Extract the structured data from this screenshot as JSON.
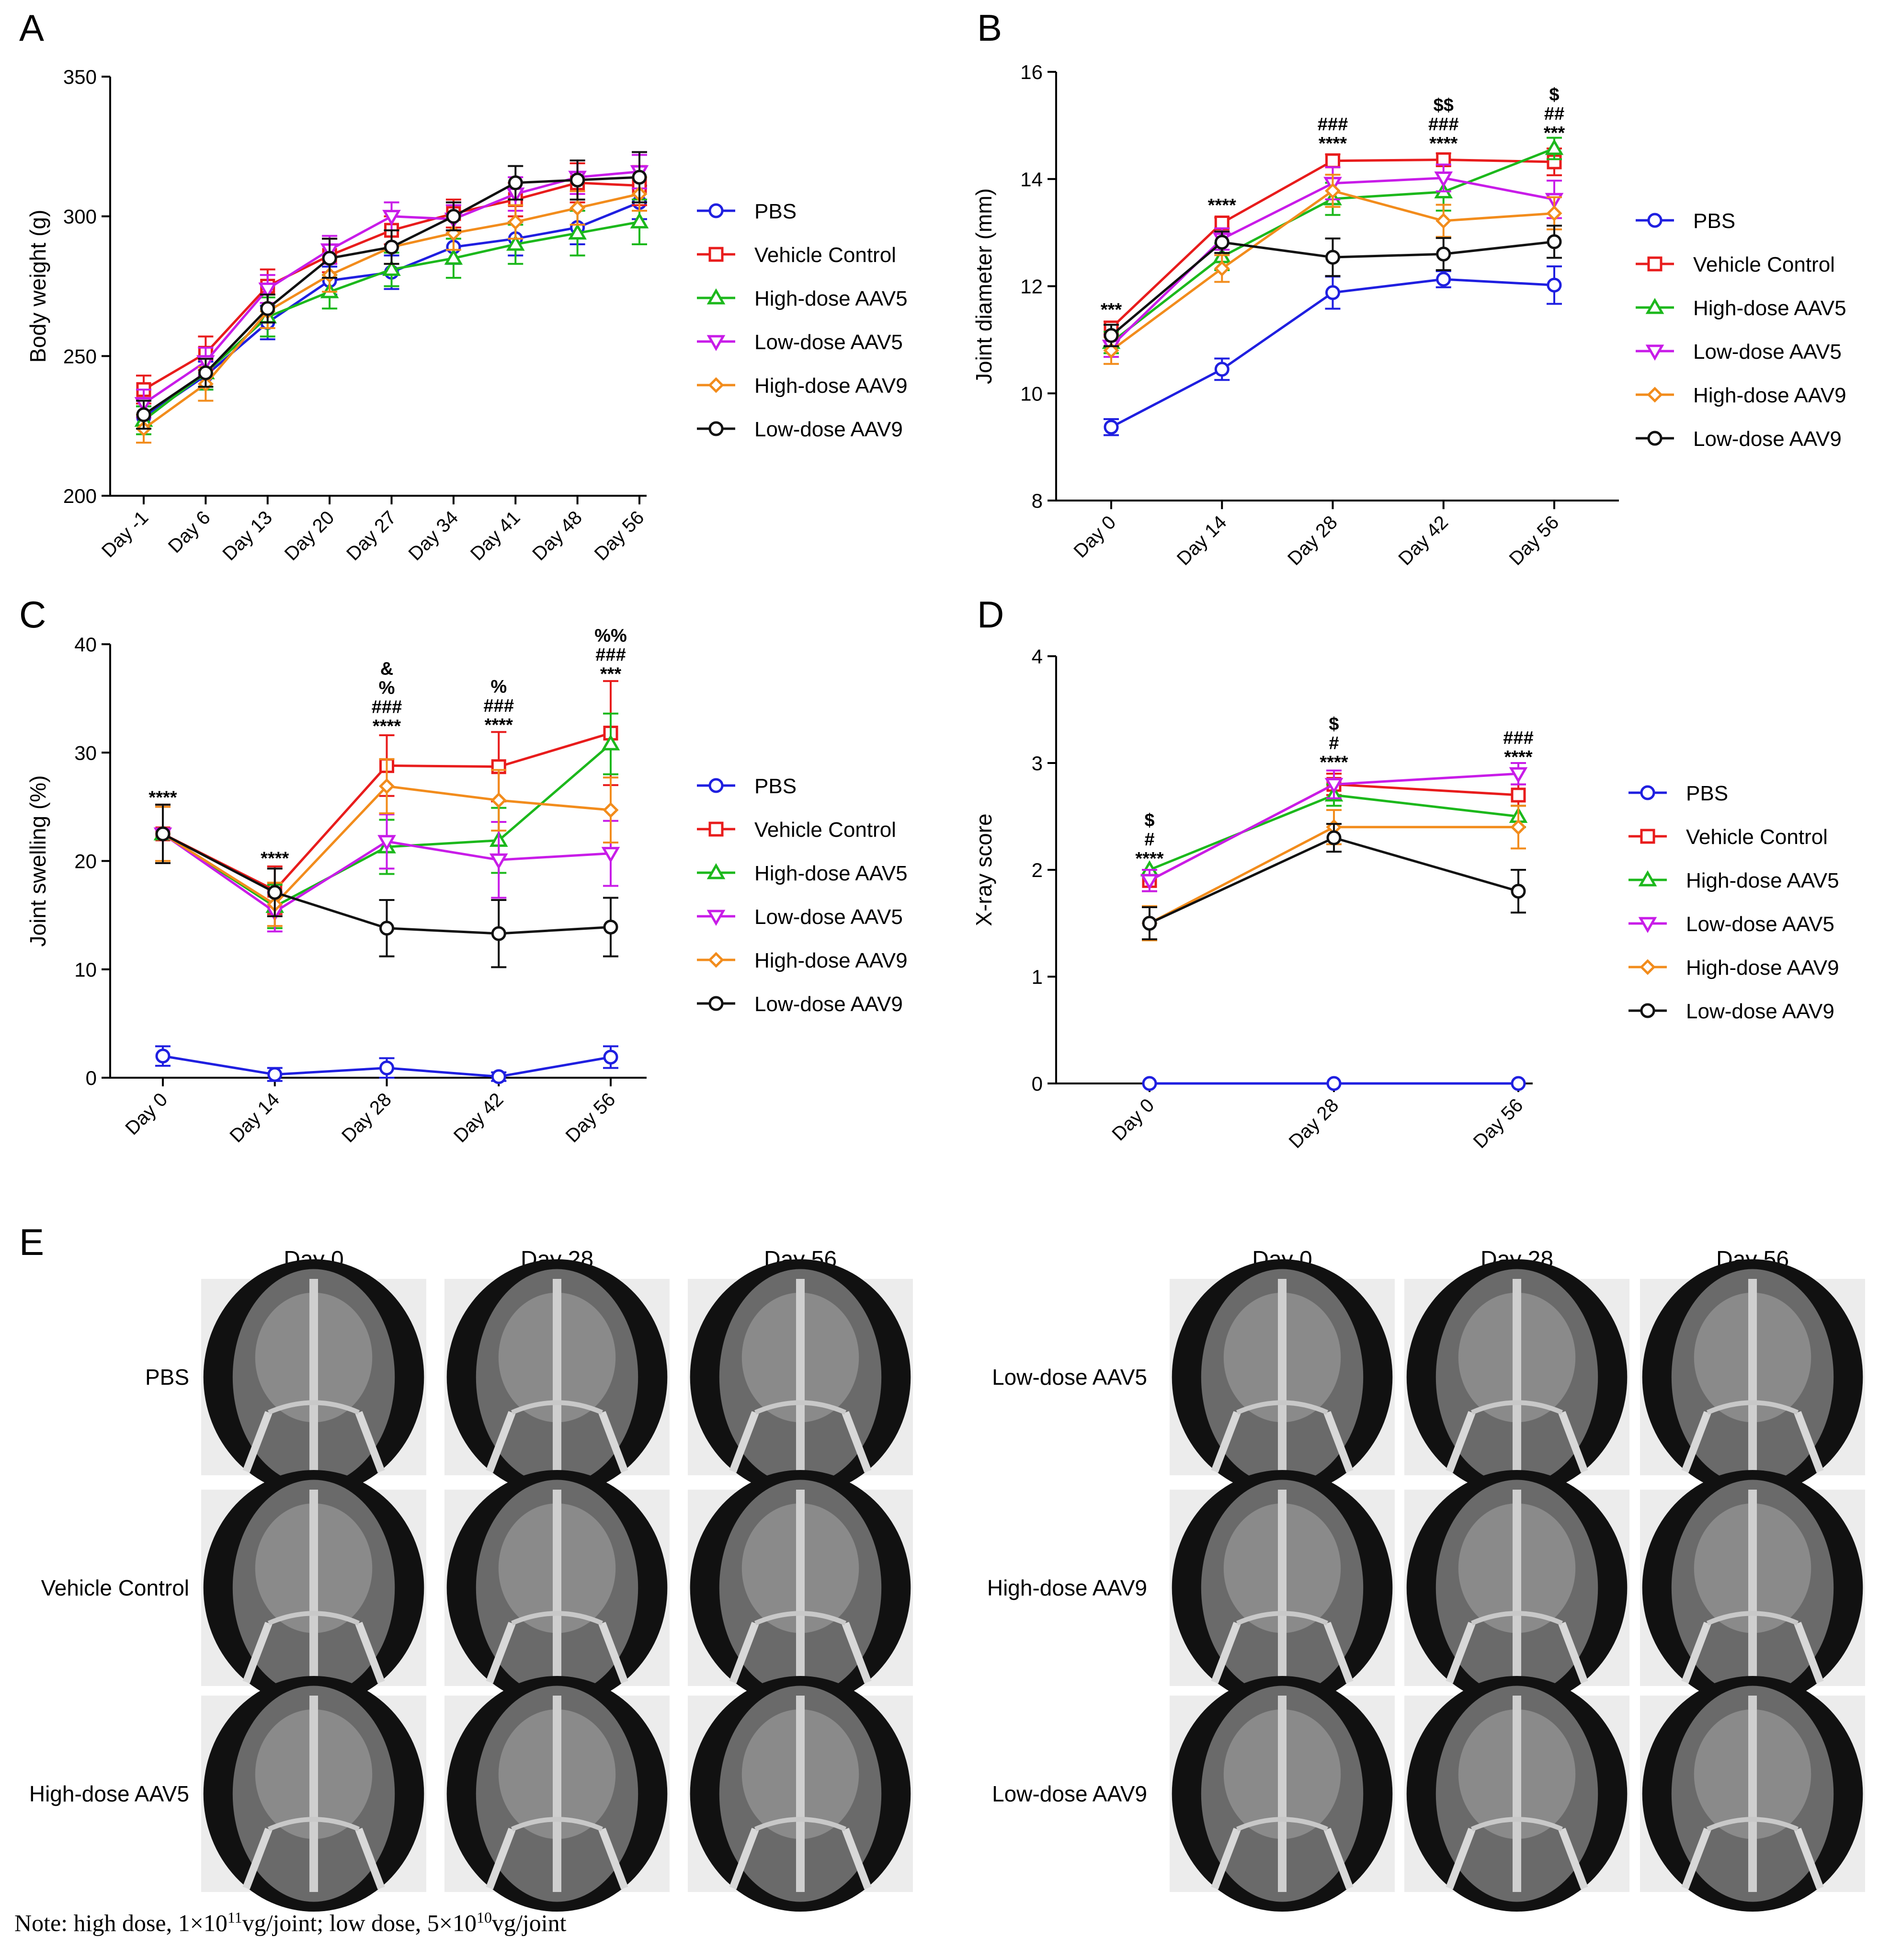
{
  "chart_data": [
    {
      "panel": "A",
      "type": "line",
      "ylabel": "Body weight (g)",
      "ylim": [
        200,
        350
      ],
      "yticks": [
        200,
        250,
        300,
        350
      ],
      "categories": [
        "Day -1",
        "Day 6",
        "Day 13",
        "Day 20",
        "Day 27",
        "Day 34",
        "Day 41",
        "Day 48",
        "Day 56"
      ],
      "series": [
        {
          "name": "PBS",
          "values": [
            228,
            243,
            262,
            277,
            280,
            289,
            292,
            296,
            305
          ],
          "err": [
            4,
            5,
            6,
            5,
            6,
            6,
            6,
            6,
            6
          ]
        },
        {
          "name": "Vehicle Control",
          "values": [
            238,
            251,
            275,
            286,
            295,
            301,
            306,
            312,
            311
          ],
          "err": [
            5,
            6,
            6,
            6,
            5,
            5,
            6,
            7,
            7
          ]
        },
        {
          "name": "High-dose AAV5",
          "values": [
            227,
            244,
            264,
            273,
            281,
            285,
            290,
            294,
            298
          ],
          "err": [
            5,
            6,
            7,
            6,
            6,
            7,
            7,
            8,
            8
          ]
        },
        {
          "name": "Low-dose AAV5",
          "values": [
            233,
            248,
            274,
            288,
            300,
            299,
            308,
            314,
            316
          ],
          "err": [
            5,
            5,
            5,
            5,
            5,
            5,
            6,
            6,
            6
          ]
        },
        {
          "name": "High-dose AAV9",
          "values": [
            224,
            240,
            266,
            279,
            289,
            294,
            298,
            303,
            308
          ],
          "err": [
            5,
            6,
            6,
            6,
            6,
            6,
            6,
            6,
            6
          ]
        },
        {
          "name": "Low-dose AAV9",
          "values": [
            229,
            244,
            267,
            285,
            289,
            300,
            312,
            313,
            314
          ],
          "err": [
            5,
            5,
            5,
            7,
            6,
            5,
            6,
            7,
            9
          ]
        }
      ],
      "annotations": []
    },
    {
      "panel": "B",
      "type": "line",
      "ylabel": "Joint diameter (mm)",
      "ylim": [
        8,
        16
      ],
      "yticks": [
        8,
        10,
        12,
        14,
        16
      ],
      "categories": [
        "Day 0",
        "Day 14",
        "Day 28",
        "Day 42",
        "Day 56"
      ],
      "series": [
        {
          "name": "PBS",
          "values": [
            9.37,
            10.45,
            11.88,
            12.13,
            12.02
          ],
          "err": [
            0.15,
            0.2,
            0.3,
            0.15,
            0.35
          ]
        },
        {
          "name": "Vehicle Control",
          "values": [
            11.22,
            13.18,
            14.34,
            14.36,
            14.32
          ],
          "err": [
            0.12,
            0.1,
            0.12,
            0.12,
            0.25
          ]
        },
        {
          "name": "High-dose AAV5",
          "values": [
            10.95,
            12.55,
            13.63,
            13.76,
            14.57
          ],
          "err": [
            0.2,
            0.25,
            0.3,
            0.35,
            0.2
          ]
        },
        {
          "name": "Low-dose AAV5",
          "values": [
            10.88,
            12.88,
            13.92,
            14.02,
            13.62
          ],
          "err": [
            0.2,
            0.2,
            0.3,
            0.25,
            0.35
          ]
        },
        {
          "name": "High-dose AAV9",
          "values": [
            10.8,
            12.33,
            13.78,
            13.22,
            13.36
          ],
          "err": [
            0.25,
            0.25,
            0.3,
            0.3,
            0.3
          ]
        },
        {
          "name": "Low-dose AAV9",
          "values": [
            11.08,
            12.82,
            12.54,
            12.6,
            12.83
          ],
          "err": [
            0.2,
            0.2,
            0.35,
            0.3,
            0.3
          ]
        }
      ],
      "annotations": [
        {
          "x": 0,
          "y": 11.45,
          "lines": [
            "***"
          ]
        },
        {
          "x": 1,
          "y": 13.4,
          "lines": [
            "****"
          ]
        },
        {
          "x": 2,
          "y": 14.55,
          "lines": [
            "###",
            "****"
          ]
        },
        {
          "x": 3,
          "y": 14.55,
          "lines": [
            "$$",
            "###",
            "****"
          ]
        },
        {
          "x": 4,
          "y": 14.75,
          "lines": [
            "$",
            "##",
            "***"
          ]
        }
      ]
    },
    {
      "panel": "C",
      "type": "line",
      "ylabel": "Joint swelling (%)",
      "ylim": [
        0,
        40
      ],
      "yticks": [
        0,
        10,
        20,
        30,
        40
      ],
      "categories": [
        "Day 0",
        "Day 14",
        "Day 28",
        "Day 42",
        "Day 56"
      ],
      "series": [
        {
          "name": "PBS",
          "values": [
            2.0,
            0.3,
            0.9,
            0.1,
            1.9
          ],
          "err": [
            0.9,
            0.6,
            0.9,
            0.4,
            1.0
          ]
        },
        {
          "name": "Vehicle Control",
          "values": [
            22.5,
            17.3,
            28.8,
            28.7,
            31.8
          ],
          "err": [
            2.7,
            2.2,
            2.8,
            3.2,
            4.8
          ]
        },
        {
          "name": "High-dose AAV5",
          "values": [
            22.5,
            15.8,
            21.3,
            21.9,
            30.8
          ],
          "err": [
            2.5,
            2.0,
            2.5,
            3.0,
            2.8
          ]
        },
        {
          "name": "Low-dose AAV5",
          "values": [
            22.5,
            15.3,
            21.8,
            20.1,
            20.7
          ],
          "err": [
            2.5,
            1.8,
            2.5,
            3.5,
            3.0
          ]
        },
        {
          "name": "High-dose AAV9",
          "values": [
            22.5,
            16.0,
            26.9,
            25.6,
            24.7
          ],
          "err": [
            2.5,
            2.0,
            2.5,
            2.8,
            3.0
          ]
        },
        {
          "name": "Low-dose AAV9",
          "values": [
            22.5,
            17.1,
            13.8,
            13.3,
            13.9
          ],
          "err": [
            2.7,
            2.2,
            2.6,
            3.1,
            2.7
          ]
        }
      ],
      "annotations": [
        {
          "x": 0,
          "y": 25.3,
          "lines": [
            "****"
          ]
        },
        {
          "x": 1,
          "y": 19.7,
          "lines": [
            "****"
          ]
        },
        {
          "x": 2,
          "y": 31.9,
          "lines": [
            "&",
            "%",
            "###",
            "****"
          ]
        },
        {
          "x": 3,
          "y": 32.0,
          "lines": [
            "%",
            "###",
            "****"
          ]
        },
        {
          "x": 4,
          "y": 36.7,
          "lines": [
            "%%",
            "###",
            "***"
          ]
        }
      ]
    },
    {
      "panel": "D",
      "type": "line",
      "ylabel": "X-ray score",
      "ylim": [
        0,
        4
      ],
      "yticks": [
        0,
        1,
        2,
        3,
        4
      ],
      "categories": [
        "Day 0",
        "Day 28",
        "Day 56"
      ],
      "series": [
        {
          "name": "PBS",
          "values": [
            0,
            0,
            0
          ],
          "err": [
            0,
            0,
            0
          ]
        },
        {
          "name": "Vehicle Control",
          "values": [
            1.9,
            2.8,
            2.7
          ],
          "err": [
            0.1,
            0.1,
            0.1
          ]
        },
        {
          "name": "High-dose AAV5",
          "values": [
            2.0,
            2.7,
            2.5
          ],
          "err": [
            0.0,
            0.1,
            0.1
          ]
        },
        {
          "name": "Low-dose AAV5",
          "values": [
            1.9,
            2.8,
            2.9
          ],
          "err": [
            0.1,
            0.13,
            0.1
          ]
        },
        {
          "name": "High-dose AAV9",
          "values": [
            1.5,
            2.4,
            2.4
          ],
          "err": [
            0.16,
            0.16,
            0.2
          ]
        },
        {
          "name": "Low-dose AAV9",
          "values": [
            1.5,
            2.3,
            1.8
          ],
          "err": [
            0.15,
            0.13,
            0.2
          ]
        }
      ],
      "annotations": [
        {
          "x": 0,
          "y": 2.05,
          "lines": [
            "$",
            "#",
            "****"
          ]
        },
        {
          "x": 1,
          "y": 2.95,
          "lines": [
            "$",
            "#",
            "****"
          ]
        },
        {
          "x": 2,
          "y": 3.0,
          "lines": [
            "###",
            "****"
          ]
        }
      ]
    }
  ],
  "series_colors": {
    "PBS": "#1f1fe0",
    "Vehicle Control": "#e81c1c",
    "High-dose AAV5": "#1cb81c",
    "Low-dose AAV5": "#c81ce8",
    "High-dose AAV9": "#f28c1c",
    "Low-dose AAV9": "#111111"
  },
  "series_markers": {
    "PBS": "circle",
    "Vehicle Control": "square",
    "High-dose AAV5": "triangle-up",
    "Low-dose AAV5": "triangle-down",
    "High-dose AAV9": "diamond",
    "Low-dose AAV9": "circle"
  },
  "panel_labels": [
    "A",
    "B",
    "C",
    "D",
    "E"
  ],
  "panel_e": {
    "left_columns": [
      "Day 0",
      "Day 28",
      "Day 56"
    ],
    "right_columns": [
      "Day 0",
      "Day 28",
      "Day 56"
    ],
    "left_rows": [
      "PBS",
      "Vehicle Control",
      "High-dose AAV5"
    ],
    "right_rows": [
      "Low-dose AAV5",
      "High-dose AAV9",
      "Low-dose AAV9"
    ]
  },
  "note": {
    "prefix": "Note: high dose, 1×10",
    "exp1": "11",
    "mid": "vg/joint; low dose, 5×10",
    "exp2": "10",
    "suffix": "vg/joint"
  }
}
